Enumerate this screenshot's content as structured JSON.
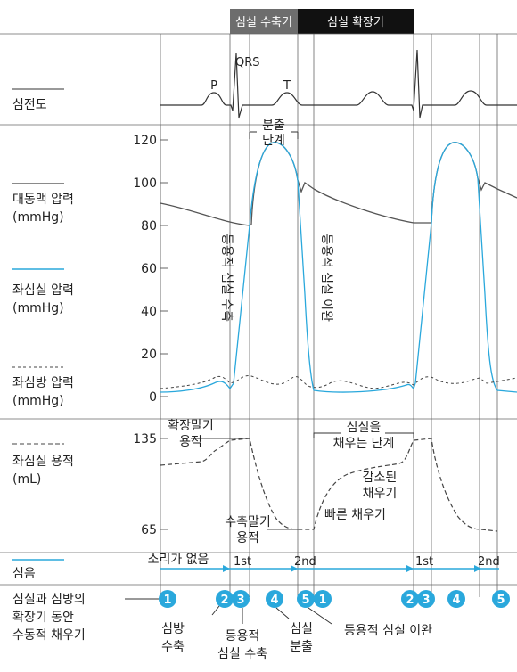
{
  "phases": {
    "systole": "심실 수축기",
    "diastole": "심실 확장기"
  },
  "ecg": {
    "label": "심전도",
    "waves": {
      "p": "P",
      "qrs": "QRS",
      "t": "T"
    }
  },
  "pressure": {
    "y_ticks": [
      "120",
      "100",
      "80",
      "60",
      "40",
      "20",
      "0"
    ],
    "aortic_label": [
      "대동맥 압력",
      "(mmHg)"
    ],
    "lv_label": [
      "좌심실 압력",
      "(mmHg)"
    ],
    "la_label": [
      "좌심방 압력",
      "(mmHg)"
    ],
    "ejection_label": [
      "분출",
      "단계"
    ],
    "iso_contraction": "등용적 심실 수축",
    "iso_relaxation": "등용적 심실 이완"
  },
  "volume": {
    "y_ticks": [
      "135",
      "65"
    ],
    "label": [
      "좌심실 용적",
      "(mL)"
    ],
    "edv_label": [
      "확장말기",
      "용적"
    ],
    "esv_label": [
      "수축말기",
      "용적"
    ],
    "filling_label": [
      "심실을",
      "채우는 단계"
    ],
    "reduced_filling": [
      "감소된",
      "채우기"
    ],
    "rapid_filling": "빠른 채우기"
  },
  "heart_sounds": {
    "label": "심음",
    "silent": "소리가 없음",
    "s1": "1st",
    "s2": "2nd"
  },
  "bottom": {
    "passive_filling": [
      "심실과 심방의",
      "확장기 동안",
      "수동적 채우기"
    ],
    "atrial_contraction": [
      "심방",
      "수축"
    ],
    "iso_contraction": [
      "등용적",
      "심실 수축"
    ],
    "ejection": [
      "심실",
      "분출"
    ],
    "iso_relaxation": "등용적 심실 이완",
    "markers": [
      "1",
      "2",
      "3",
      "4",
      "5",
      "1",
      "2",
      "3",
      "4",
      "5"
    ]
  },
  "colors": {
    "blue": "#2aa8dc",
    "aortic": "#555555",
    "grid": "#666666",
    "black_bar": "#111111",
    "gray_bar": "#6d6d6d"
  }
}
